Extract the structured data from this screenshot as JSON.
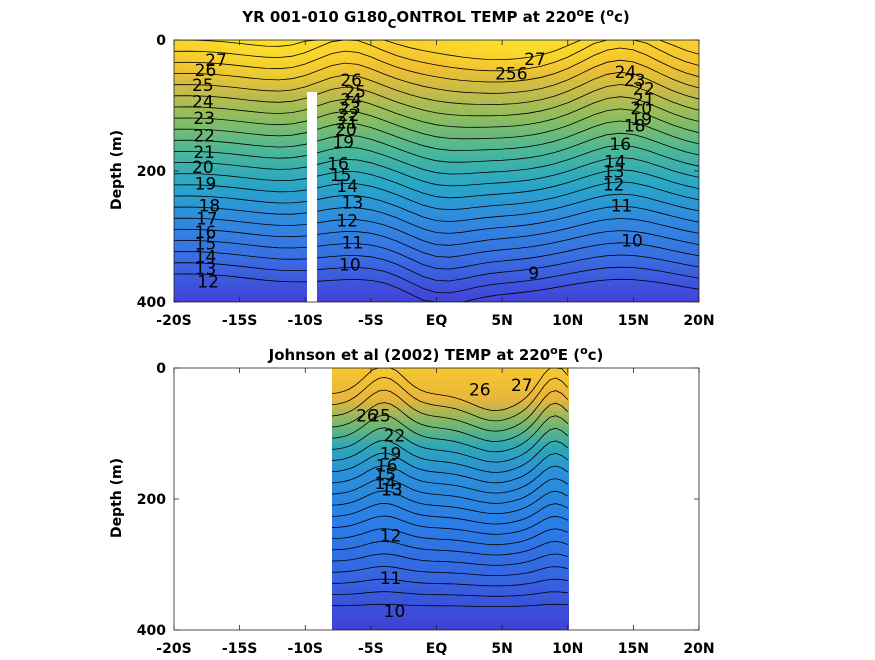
{
  "chart_data": [
    {
      "type": "heatmap",
      "title_parts": {
        "main": "YR 001-010 G180",
        "sub": "C",
        "rest": "ONTROL TEMP at 220",
        "deg": "o",
        "unit_pre": "E (",
        "unit_deg": "o",
        "unit_post": "c)"
      },
      "ylabel": "Depth (m)",
      "xlabel": "",
      "x_ticks": [
        "-20S",
        "-15S",
        "-10S",
        "-5S",
        "EQ",
        "5N",
        "10N",
        "15N",
        "20N"
      ],
      "y_ticks": [
        "0",
        "200",
        "400"
      ],
      "xlim": [
        -20,
        20
      ],
      "ylim": [
        0,
        400
      ],
      "data_extent_x": [
        -20,
        20
      ],
      "colormap": "parula",
      "color_range": [
        9,
        28
      ],
      "contour_labels": [
        {
          "text": "27",
          "x": -16.8,
          "y": 40
        },
        {
          "text": "26",
          "x": -17.6,
          "y": 55
        },
        {
          "text": "25",
          "x": -17.8,
          "y": 78
        },
        {
          "text": "24",
          "x": -17.8,
          "y": 103
        },
        {
          "text": "23",
          "x": -17.7,
          "y": 128
        },
        {
          "text": "22",
          "x": -17.7,
          "y": 155
        },
        {
          "text": "21",
          "x": -17.7,
          "y": 180
        },
        {
          "text": "20",
          "x": -17.8,
          "y": 203
        },
        {
          "text": "19",
          "x": -17.6,
          "y": 228
        },
        {
          "text": "18",
          "x": -17.3,
          "y": 262
        },
        {
          "text": "17",
          "x": -17.5,
          "y": 282
        },
        {
          "text": "16",
          "x": -17.6,
          "y": 302
        },
        {
          "text": "15",
          "x": -17.6,
          "y": 320
        },
        {
          "text": "14",
          "x": -17.6,
          "y": 340
        },
        {
          "text": "13",
          "x": -17.6,
          "y": 358
        },
        {
          "text": "12",
          "x": -17.4,
          "y": 378
        },
        {
          "text": "26",
          "x": -6.5,
          "y": 70
        },
        {
          "text": "25",
          "x": -6.2,
          "y": 88
        },
        {
          "text": "24",
          "x": -6.5,
          "y": 100
        },
        {
          "text": "23",
          "x": -6.6,
          "y": 113
        },
        {
          "text": "22",
          "x": -6.7,
          "y": 124
        },
        {
          "text": "21",
          "x": -6.8,
          "y": 135
        },
        {
          "text": "20",
          "x": -6.9,
          "y": 146
        },
        {
          "text": "19",
          "x": -7.1,
          "y": 165
        },
        {
          "text": "16",
          "x": -7.5,
          "y": 198
        },
        {
          "text": "15",
          "x": -7.3,
          "y": 215
        },
        {
          "text": "14",
          "x": -6.8,
          "y": 232
        },
        {
          "text": "13",
          "x": -6.4,
          "y": 257
        },
        {
          "text": "12",
          "x": -6.8,
          "y": 285
        },
        {
          "text": "11",
          "x": -6.4,
          "y": 318
        },
        {
          "text": "10",
          "x": -6.6,
          "y": 352
        },
        {
          "text": "27",
          "x": 7.5,
          "y": 38
        },
        {
          "text": "256",
          "x": 5.7,
          "y": 60
        },
        {
          "text": "24",
          "x": 14.4,
          "y": 58
        },
        {
          "text": "23",
          "x": 15.1,
          "y": 70
        },
        {
          "text": "22",
          "x": 15.8,
          "y": 83
        },
        {
          "text": "21",
          "x": 15.8,
          "y": 100
        },
        {
          "text": "20",
          "x": 15.6,
          "y": 113
        },
        {
          "text": "19",
          "x": 15.6,
          "y": 130
        },
        {
          "text": "18",
          "x": 15.1,
          "y": 140
        },
        {
          "text": "16",
          "x": 14.0,
          "y": 168
        },
        {
          "text": "14",
          "x": 13.6,
          "y": 195
        },
        {
          "text": "13",
          "x": 13.5,
          "y": 210
        },
        {
          "text": "12",
          "x": 13.5,
          "y": 230
        },
        {
          "text": "11",
          "x": 14.1,
          "y": 262
        },
        {
          "text": "10",
          "x": 14.9,
          "y": 315
        },
        {
          "text": "9",
          "x": 7.4,
          "y": 365
        }
      ]
    },
    {
      "type": "heatmap",
      "title_parts": {
        "main": "Johnson et al (2002) TEMP at 220",
        "deg": "o",
        "unit_pre": "E (",
        "unit_deg": "o",
        "unit_post": "c)"
      },
      "ylabel": "Depth (m)",
      "xlabel": "",
      "x_ticks": [
        "-20S",
        "-15S",
        "-10S",
        "-5S",
        "EQ",
        "5N",
        "10N",
        "15N",
        "20N"
      ],
      "y_ticks": [
        "0",
        "200",
        "400"
      ],
      "xlim": [
        -20,
        20
      ],
      "ylim": [
        0,
        400
      ],
      "data_extent_x": [
        -8,
        10
      ],
      "colormap": "parula",
      "color_range": [
        9,
        28
      ],
      "contour_labels": [
        {
          "text": "26",
          "x": 3.3,
          "y": 42
        },
        {
          "text": "27",
          "x": 6.5,
          "y": 35
        },
        {
          "text": "26",
          "x": -5.3,
          "y": 82
        },
        {
          "text": "25",
          "x": -4.3,
          "y": 82
        },
        {
          "text": "22",
          "x": -3.2,
          "y": 112
        },
        {
          "text": "19",
          "x": -3.5,
          "y": 140
        },
        {
          "text": "16",
          "x": -3.8,
          "y": 158
        },
        {
          "text": "15",
          "x": -3.9,
          "y": 172
        },
        {
          "text": "14",
          "x": -3.9,
          "y": 185
        },
        {
          "text": "13",
          "x": -3.4,
          "y": 195
        },
        {
          "text": "13",
          "x": -3.4,
          "y": 195
        },
        {
          "text": "12",
          "x": -3.5,
          "y": 265
        },
        {
          "text": "11",
          "x": -3.5,
          "y": 330
        },
        {
          "text": "10",
          "x": -3.2,
          "y": 380
        }
      ]
    }
  ]
}
